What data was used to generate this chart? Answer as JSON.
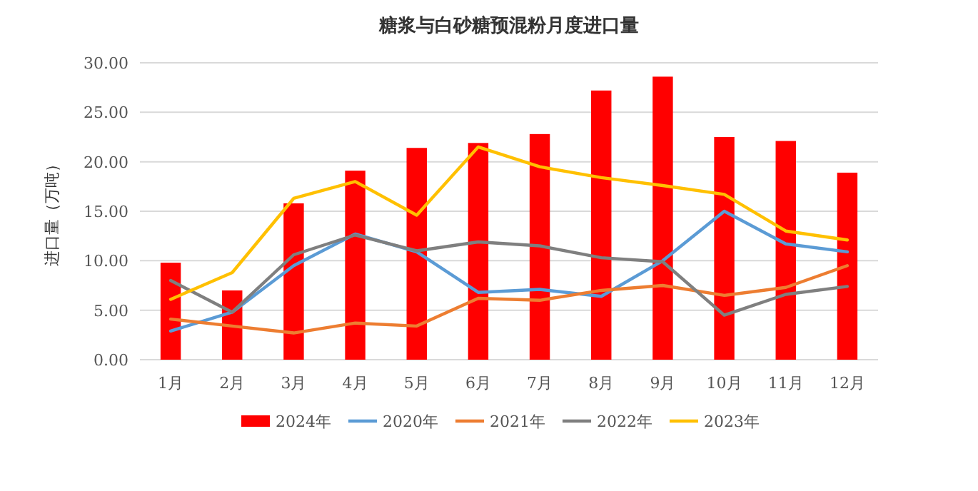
{
  "chart_data": {
    "type": "bar",
    "title": "糖浆与白砂糖预混粉月度进口量",
    "ylabel": "进口量（万吨）",
    "categories": [
      "1月",
      "2月",
      "3月",
      "4月",
      "5月",
      "6月",
      "7月",
      "8月",
      "9月",
      "10月",
      "11月",
      "12月"
    ],
    "ylim": [
      0,
      30
    ],
    "yticks": [
      {
        "value": 0,
        "label": "0.00"
      },
      {
        "value": 5,
        "label": "5.00"
      },
      {
        "value": 10,
        "label": "10.00"
      },
      {
        "value": 15,
        "label": "15.00"
      },
      {
        "value": 20,
        "label": "20.00"
      },
      {
        "value": 25,
        "label": "25.00"
      },
      {
        "value": 30,
        "label": "30.00"
      }
    ],
    "grid": "y",
    "legend": "bottom",
    "series": [
      {
        "name": "2024年",
        "color": "#ff0000",
        "values": [
          9.8,
          7.0,
          15.8,
          19.1,
          21.4,
          21.9,
          22.8,
          27.2,
          28.6,
          22.5,
          22.1,
          18.9
        ]
      },
      {
        "name": "2020年",
        "type": "line",
        "color": "#5b9bd5",
        "values": [
          2.9,
          4.8,
          9.5,
          12.7,
          10.9,
          6.8,
          7.1,
          6.4,
          10.0,
          15.0,
          11.7,
          10.9
        ]
      },
      {
        "name": "2021年",
        "type": "line",
        "color": "#ed7d31",
        "values": [
          4.1,
          3.4,
          2.7,
          3.7,
          3.4,
          6.2,
          6.0,
          7.0,
          7.5,
          6.5,
          7.3,
          9.5
        ]
      },
      {
        "name": "2022年",
        "type": "line",
        "color": "#7f7f7f",
        "values": [
          8.0,
          4.8,
          10.6,
          12.6,
          11.0,
          11.9,
          11.5,
          10.3,
          9.9,
          4.5,
          6.6,
          7.4
        ]
      },
      {
        "name": "2023年",
        "type": "line",
        "color": "#ffc000",
        "values": [
          6.1,
          8.8,
          16.3,
          18.0,
          14.6,
          21.5,
          19.5,
          18.4,
          17.6,
          16.7,
          13.0,
          12.1
        ]
      }
    ]
  }
}
